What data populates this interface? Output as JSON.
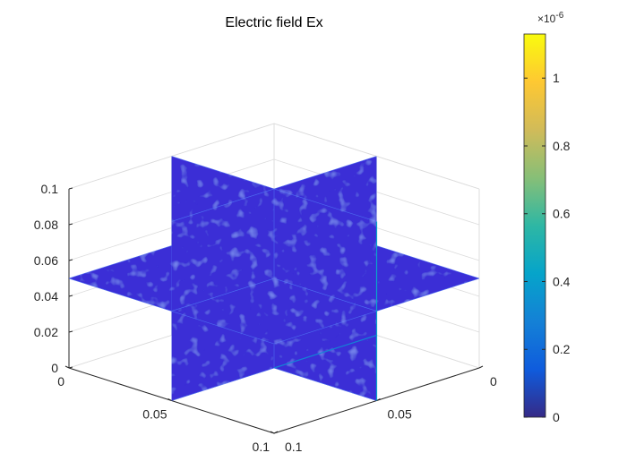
{
  "chart_data": {
    "type": "heatmap",
    "subtype": "3d-slice",
    "title": "Electric field Ex",
    "xlabel": "",
    "ylabel": "",
    "zlabel": "",
    "axes": {
      "x": {
        "lim": [
          0,
          0.1
        ],
        "ticks": [
          0,
          0.05,
          0.1
        ],
        "tick_labels": [
          "0",
          "0.05",
          "0.1"
        ]
      },
      "y": {
        "lim": [
          0,
          0.1
        ],
        "ticks": [
          0,
          0.05,
          0.1
        ],
        "tick_labels": [
          "0",
          "0.05",
          "0.1"
        ]
      },
      "z": {
        "lim": [
          0,
          0.1
        ],
        "ticks": [
          0,
          0.02,
          0.04,
          0.06,
          0.08,
          0.1
        ],
        "tick_labels": [
          "0",
          "0.02",
          "0.04",
          "0.06",
          "0.08",
          "0.1"
        ]
      }
    },
    "slices": [
      {
        "plane": "x",
        "position": 0.05
      },
      {
        "plane": "y",
        "position": 0.05
      },
      {
        "plane": "z",
        "position": 0.05
      }
    ],
    "grid": true,
    "colormap": "parula",
    "colorbar": {
      "location": "right",
      "multiplier": "×10",
      "exponent": "-6",
      "lim": [
        0,
        1.13
      ],
      "ticks": [
        0,
        0.2,
        0.4,
        0.6,
        0.8,
        1
      ],
      "tick_labels": [
        "0",
        "0.2",
        "0.4",
        "0.6",
        "0.8",
        "1"
      ]
    },
    "value_range": [
      0,
      1.13
    ],
    "typical_value": 0.12
  },
  "colors": {
    "slice_base": "#3a2fd6",
    "slice_bright": "#4d6bf0",
    "parula": [
      "#352a87",
      "#0f5cdd",
      "#1481d6",
      "#06a4ca",
      "#2eb7a4",
      "#87bf77",
      "#d1bb59",
      "#fec832",
      "#f9fb0e"
    ]
  }
}
